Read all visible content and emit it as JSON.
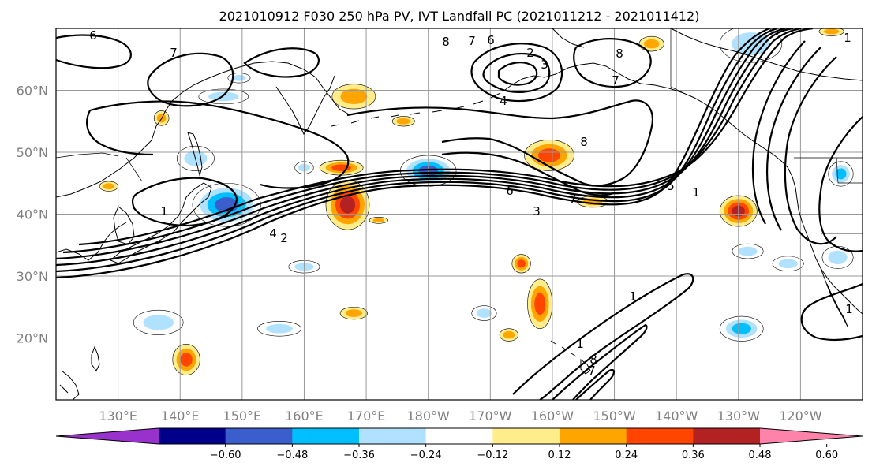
{
  "title": "2021010912 F030 250 hPa PV, IVT Landfall PC (2021011212 - 2021011412)",
  "map": {
    "lon_labels": [
      "130°E",
      "140°E",
      "150°E",
      "160°E",
      "170°E",
      "180°W",
      "170°W",
      "160°W",
      "150°W",
      "140°W",
      "130°W",
      "120°W"
    ],
    "lat_labels": [
      "60°N",
      "50°N",
      "40°N",
      "30°N",
      "20°N"
    ],
    "extent": {
      "lon": [
        120,
        250
      ],
      "lat": [
        10,
        70
      ]
    },
    "grid": true,
    "land_color": "#ffffff",
    "ocean_color": "#ffffff"
  },
  "contour_labels": [
    "6",
    "7",
    "8",
    "7",
    "6",
    "2",
    "3",
    "4",
    "8",
    "7",
    "1",
    "8",
    "6",
    "7",
    "3",
    "5",
    "1",
    "1",
    "4",
    "2",
    "1",
    "1",
    "8",
    "7",
    "1"
  ],
  "colorbar": {
    "colors": [
      "#9932cc",
      "#00008b",
      "#3a5fcd",
      "#00bfff",
      "#b0e2ff",
      "#ffffff",
      "#ffec8b",
      "#ffa500",
      "#ff4500",
      "#b22222",
      "#ff82ab"
    ],
    "tick_labels": [
      "−0.60",
      "−0.48",
      "−0.36",
      "−0.24",
      "−0.12",
      "0.12",
      "0.24",
      "0.36",
      "0.48",
      "0.60"
    ],
    "ticks": [
      -0.6,
      -0.48,
      -0.36,
      -0.24,
      -0.12,
      0.12,
      0.24,
      0.36,
      0.48,
      0.6
    ]
  },
  "anomalies": [
    {
      "lon": 147.5,
      "lat": 41.5,
      "rx": 5.5,
      "ry": 3.5,
      "v": -0.52
    },
    {
      "lon": 142.5,
      "lat": 49,
      "rx": 3,
      "ry": 2,
      "v": -0.3
    },
    {
      "lon": 147,
      "lat": 59,
      "rx": 4,
      "ry": 1.2,
      "v": -0.25
    },
    {
      "lon": 180,
      "lat": 47,
      "rx": 4.5,
      "ry": 2.5,
      "v": -0.5
    },
    {
      "lon": 167,
      "lat": 41.5,
      "rx": 3.5,
      "ry": 4,
      "v": 0.55
    },
    {
      "lon": 166,
      "lat": 47.5,
      "rx": 3.5,
      "ry": 1.2,
      "v": 0.42
    },
    {
      "lon": 136.5,
      "lat": 22.5,
      "rx": 4,
      "ry": 2,
      "v": -0.28
    },
    {
      "lon": 156,
      "lat": 21.5,
      "rx": 3.5,
      "ry": 1.2,
      "v": -0.3
    },
    {
      "lon": 160,
      "lat": 31.5,
      "rx": 2.5,
      "ry": 1,
      "v": -0.28
    },
    {
      "lon": 160,
      "lat": 47.5,
      "rx": 1.5,
      "ry": 1,
      "v": -0.3
    },
    {
      "lon": 168,
      "lat": 59,
      "rx": 3.5,
      "ry": 2,
      "v": 0.35
    },
    {
      "lon": 141,
      "lat": 16.5,
      "rx": 2.2,
      "ry": 2.5,
      "v": 0.45
    },
    {
      "lon": 193,
      "lat": 20.5,
      "rx": 1.5,
      "ry": 1,
      "v": 0.3
    },
    {
      "lon": 189,
      "lat": 24,
      "rx": 2,
      "ry": 1.2,
      "v": -0.3
    },
    {
      "lon": 168,
      "lat": 24,
      "rx": 2.2,
      "ry": 1,
      "v": 0.3
    },
    {
      "lon": 195,
      "lat": 32,
      "rx": 1.5,
      "ry": 1.5,
      "v": 0.4
    },
    {
      "lon": 198,
      "lat": 25.5,
      "rx": 2,
      "ry": 4,
      "v": 0.45
    },
    {
      "lon": 199.5,
      "lat": 49.5,
      "rx": 4,
      "ry": 2.5,
      "v": 0.42
    },
    {
      "lon": 206.5,
      "lat": 42,
      "rx": 2.5,
      "ry": 0.9,
      "v": 0.3
    },
    {
      "lon": 230,
      "lat": 40.5,
      "rx": 3,
      "ry": 2.5,
      "v": 0.48
    },
    {
      "lon": 230.5,
      "lat": 21.5,
      "rx": 3.5,
      "ry": 2,
      "v": -0.45
    },
    {
      "lon": 231.5,
      "lat": 34,
      "rx": 2.5,
      "ry": 1.2,
      "v": -0.25
    },
    {
      "lon": 238,
      "lat": 32,
      "rx": 2.5,
      "ry": 1.2,
      "v": -0.3
    },
    {
      "lon": 246,
      "lat": 33,
      "rx": 2.5,
      "ry": 1.8,
      "v": -0.3
    },
    {
      "lon": 246.5,
      "lat": 46.5,
      "rx": 2,
      "ry": 2,
      "v": -0.42
    },
    {
      "lon": 232,
      "lat": 67.5,
      "rx": 5,
      "ry": 3,
      "v": -0.3
    },
    {
      "lon": 216,
      "lat": 67.5,
      "rx": 2,
      "ry": 1.2,
      "v": 0.3
    },
    {
      "lon": 245,
      "lat": 69.5,
      "rx": 2,
      "ry": 0.7,
      "v": 0.3
    },
    {
      "lon": 172,
      "lat": 39,
      "rx": 1.5,
      "ry": 0.5,
      "v": 0.3
    },
    {
      "lon": 176,
      "lat": 55,
      "rx": 1.8,
      "ry": 0.8,
      "v": 0.3
    },
    {
      "lon": 149.5,
      "lat": 62,
      "rx": 1.8,
      "ry": 0.8,
      "v": -0.25
    },
    {
      "lon": 128.5,
      "lat": 44.5,
      "rx": 1.5,
      "ry": 0.8,
      "v": 0.3
    },
    {
      "lon": 137,
      "lat": 55.5,
      "rx": 1.2,
      "ry": 1.2,
      "v": 0.3
    }
  ]
}
